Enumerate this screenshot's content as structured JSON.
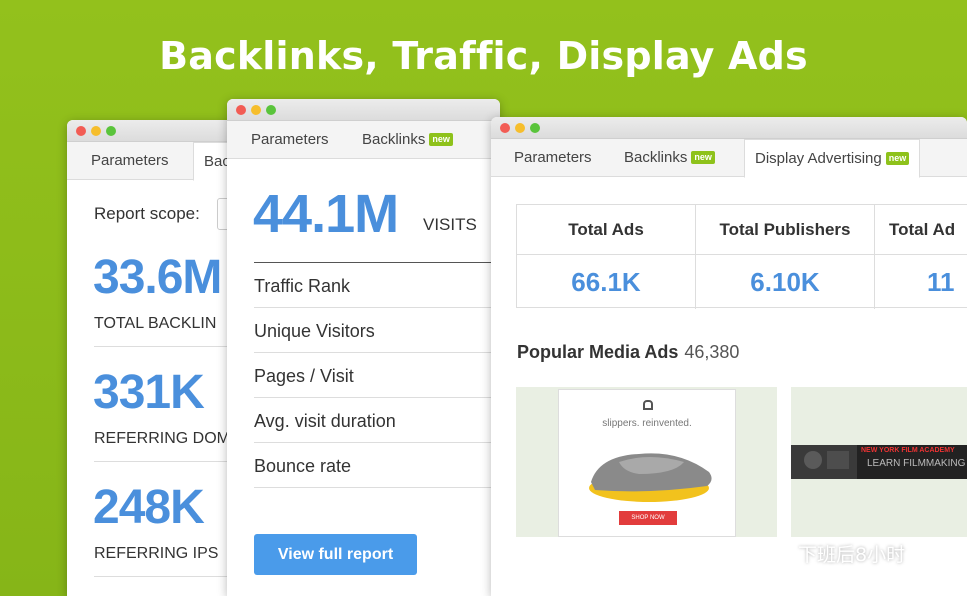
{
  "headline": "Backlinks, Traffic, Display Ads",
  "backlinks_window": {
    "tabs": [
      "Parameters",
      "Bac"
    ],
    "report_scope_label": "Report scope:",
    "metrics": [
      {
        "value": "33.6M",
        "label": "TOTAL BACKLIN"
      },
      {
        "value": "331K",
        "label": "REFERRING DOM"
      },
      {
        "value": "248K",
        "label": "REFERRING IPS"
      }
    ]
  },
  "traffic_window": {
    "tabs": [
      {
        "label": "Parameters"
      },
      {
        "label": "Backlinks",
        "badge": "new"
      }
    ],
    "visits_value": "44.1M",
    "visits_label": "VISITS",
    "metrics": [
      "Traffic Rank",
      "Unique Visitors",
      "Pages / Visit",
      "Avg. visit duration",
      "Bounce rate"
    ],
    "button": "View full report"
  },
  "ads_window": {
    "tabs": [
      {
        "label": "Parameters"
      },
      {
        "label": "Backlinks",
        "badge": "new"
      },
      {
        "label": "Display Advertising",
        "badge": "new"
      }
    ],
    "stats": [
      {
        "label": "Total Ads",
        "value": "66.1K"
      },
      {
        "label": "Total Publishers",
        "value": "6.10K"
      },
      {
        "label": "Total Ad",
        "value": "11"
      }
    ],
    "popular_title": "Popular Media Ads",
    "popular_count": "46,380",
    "ad1": {
      "tagline": "slippers. reinvented.",
      "button": "SHOP NOW"
    },
    "ad2": {
      "line1": "NEW YORK FILM ACADEMY",
      "line2": "LEARN FILMMAKING"
    }
  },
  "watermark": "下班后8小时",
  "colors": {
    "background": "#8dbb1a",
    "accent_blue": "#4a8fdc",
    "badge_green": "#8ec21b",
    "button_blue": "#4a9bea"
  }
}
